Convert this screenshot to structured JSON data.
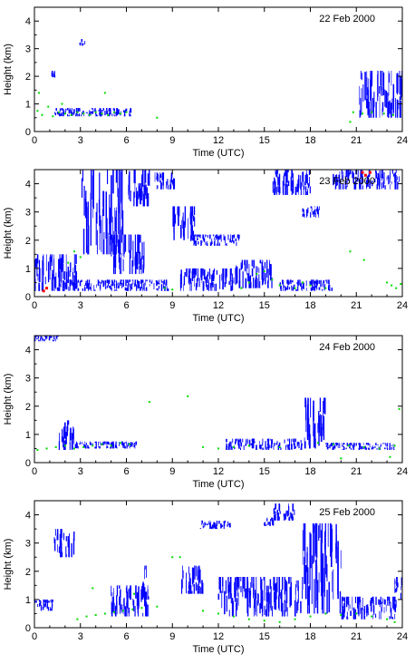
{
  "colors": {
    "cloud_base": "#0000ff",
    "aerosol_layer": "#00dd00",
    "precipitation": "#ff0000",
    "axis": "#000000"
  },
  "chart_data": [
    {
      "type": "scatter",
      "title": "22 Feb 2000",
      "xlabel": "Time (UTC)",
      "ylabel": "Height (km)",
      "xlim": [
        0,
        24
      ],
      "ylim": [
        0,
        4.5
      ],
      "xticks": [
        "0",
        "3",
        "6",
        "9",
        "12",
        "15",
        "18",
        "21",
        "24"
      ],
      "yticks": [
        "0",
        "1",
        "2",
        "3",
        "4"
      ],
      "cloud_segments": [
        {
          "t0": 1.1,
          "t1": 1.4,
          "h0": 1.95,
          "h1": 2.2
        },
        {
          "t0": 2.9,
          "t1": 3.3,
          "h0": 3.1,
          "h1": 3.35
        },
        {
          "t0": 1.3,
          "t1": 6.4,
          "h0": 0.55,
          "h1": 0.85
        },
        {
          "t0": 21.2,
          "t1": 24.0,
          "h0": 0.5,
          "h1": 2.2
        }
      ],
      "aerosol_points": [
        [
          0.2,
          0.75
        ],
        [
          0.5,
          0.6
        ],
        [
          0.9,
          0.9
        ],
        [
          1.2,
          0.55
        ],
        [
          1.6,
          0.7
        ],
        [
          2.0,
          0.65
        ],
        [
          2.4,
          0.6
        ],
        [
          2.8,
          0.7
        ],
        [
          3.2,
          0.65
        ],
        [
          3.6,
          0.6
        ],
        [
          4.0,
          0.7
        ],
        [
          4.4,
          0.65
        ],
        [
          4.8,
          0.6
        ],
        [
          5.2,
          0.7
        ],
        [
          5.6,
          0.65
        ],
        [
          6.0,
          0.7
        ],
        [
          0.3,
          1.4
        ],
        [
          1.8,
          1.0
        ],
        [
          4.6,
          1.4
        ],
        [
          8.0,
          0.5
        ],
        [
          20.6,
          0.35
        ],
        [
          20.8,
          0.7
        ],
        [
          21.4,
          0.65
        ],
        [
          22.0,
          0.7
        ],
        [
          22.8,
          0.65
        ],
        [
          23.4,
          0.6
        ]
      ],
      "precip_points": []
    },
    {
      "type": "scatter",
      "title": "23 Feb 2000",
      "xlabel": "Time (UTC)",
      "ylabel": "Height (km)",
      "xlim": [
        0,
        24
      ],
      "ylim": [
        0,
        4.5
      ],
      "xticks": [
        "0",
        "3",
        "6",
        "9",
        "12",
        "15",
        "18",
        "21",
        "24"
      ],
      "yticks": [
        "0",
        "1",
        "2",
        "3",
        "4"
      ],
      "cloud_segments": [
        {
          "t0": 0.0,
          "t1": 2.8,
          "h0": 0.2,
          "h1": 1.5
        },
        {
          "t0": 3.0,
          "t1": 5.8,
          "h0": 1.5,
          "h1": 4.5
        },
        {
          "t0": 6.0,
          "t1": 7.5,
          "h0": 3.2,
          "h1": 4.5
        },
        {
          "t0": 7.8,
          "t1": 9.2,
          "h0": 3.8,
          "h1": 4.4
        },
        {
          "t0": 1.5,
          "t1": 8.8,
          "h0": 0.2,
          "h1": 0.6
        },
        {
          "t0": 5.0,
          "t1": 7.2,
          "h0": 0.8,
          "h1": 2.2
        },
        {
          "t0": 9.0,
          "t1": 10.5,
          "h0": 2.0,
          "h1": 3.2
        },
        {
          "t0": 9.5,
          "t1": 13.0,
          "h0": 0.2,
          "h1": 1.0
        },
        {
          "t0": 10.2,
          "t1": 13.5,
          "h0": 1.8,
          "h1": 2.2
        },
        {
          "t0": 13.0,
          "t1": 15.5,
          "h0": 0.3,
          "h1": 1.3
        },
        {
          "t0": 15.5,
          "t1": 18.0,
          "h0": 3.6,
          "h1": 4.5
        },
        {
          "t0": 16.0,
          "t1": 19.5,
          "h0": 0.2,
          "h1": 0.6
        },
        {
          "t0": 17.5,
          "t1": 18.6,
          "h0": 2.8,
          "h1": 3.2
        },
        {
          "t0": 19.5,
          "t1": 23.8,
          "h0": 3.8,
          "h1": 4.5
        }
      ],
      "aerosol_points": [
        [
          2.2,
          1.2
        ],
        [
          2.6,
          1.6
        ],
        [
          3.0,
          1.4
        ],
        [
          8.5,
          0.3
        ],
        [
          9.0,
          0.25
        ],
        [
          13.5,
          0.3
        ],
        [
          14.0,
          0.5
        ],
        [
          14.5,
          0.8
        ],
        [
          15.0,
          0.9
        ],
        [
          15.5,
          0.6
        ],
        [
          16.0,
          0.4
        ],
        [
          17.0,
          0.3
        ],
        [
          17.5,
          0.5
        ],
        [
          18.0,
          0.4
        ],
        [
          19.0,
          0.3
        ],
        [
          20.6,
          1.6
        ],
        [
          21.5,
          1.3
        ],
        [
          23.0,
          0.5
        ],
        [
          23.3,
          0.4
        ],
        [
          23.6,
          0.3
        ],
        [
          23.9,
          0.45
        ]
      ],
      "precip_points": [
        [
          0.6,
          0.2
        ],
        [
          0.8,
          0.3
        ],
        [
          21.4,
          4.4
        ],
        [
          21.6,
          4.3
        ],
        [
          21.9,
          4.4
        ]
      ]
    },
    {
      "type": "scatter",
      "title": "24 Feb 2000",
      "xlabel": "Time (UTC)",
      "ylabel": "Height (km)",
      "xlim": [
        0,
        24
      ],
      "ylim": [
        0,
        4.5
      ],
      "xticks": [
        "0",
        "3",
        "6",
        "9",
        "12",
        "15",
        "18",
        "21",
        "24"
      ],
      "yticks": [
        "0",
        "1",
        "2",
        "3",
        "4"
      ],
      "cloud_segments": [
        {
          "t0": 0.0,
          "t1": 1.6,
          "h0": 4.3,
          "h1": 4.5
        },
        {
          "t0": 1.6,
          "t1": 2.6,
          "h0": 0.45,
          "h1": 1.5
        },
        {
          "t0": 2.6,
          "t1": 6.8,
          "h0": 0.5,
          "h1": 0.75
        },
        {
          "t0": 12.5,
          "t1": 17.5,
          "h0": 0.45,
          "h1": 0.85
        },
        {
          "t0": 17.5,
          "t1": 19.0,
          "h0": 0.5,
          "h1": 2.3
        },
        {
          "t0": 19.0,
          "t1": 23.5,
          "h0": 0.45,
          "h1": 0.7
        }
      ],
      "aerosol_points": [
        [
          0.2,
          0.45
        ],
        [
          0.8,
          0.5
        ],
        [
          1.4,
          0.55
        ],
        [
          2.0,
          0.6
        ],
        [
          2.6,
          0.5
        ],
        [
          3.2,
          0.55
        ],
        [
          3.8,
          0.6
        ],
        [
          4.4,
          0.65
        ],
        [
          5.0,
          0.6
        ],
        [
          5.6,
          0.7
        ],
        [
          6.2,
          0.65
        ],
        [
          7.5,
          2.15
        ],
        [
          10.0,
          2.35
        ],
        [
          11.0,
          0.55
        ],
        [
          12.0,
          0.5
        ],
        [
          13.0,
          0.55
        ],
        [
          14.0,
          0.6
        ],
        [
          16.0,
          0.55
        ],
        [
          18.5,
          0.7
        ],
        [
          19.5,
          0.65
        ],
        [
          20.5,
          0.6
        ],
        [
          21.5,
          0.55
        ],
        [
          22.5,
          0.5
        ],
        [
          23.5,
          0.6
        ],
        [
          23.8,
          1.9
        ],
        [
          23.2,
          0.2
        ],
        [
          20.0,
          0.15
        ]
      ],
      "precip_points": []
    },
    {
      "type": "scatter",
      "title": "25 Feb 2000",
      "xlabel": "Time (UTC)",
      "ylabel": "Height (km)",
      "xlim": [
        0,
        24
      ],
      "ylim": [
        0,
        4.5
      ],
      "xticks": [
        "0",
        "3",
        "6",
        "9",
        "12",
        "15",
        "18",
        "21",
        "24"
      ],
      "yticks": [
        "0",
        "1",
        "2",
        "3",
        "4"
      ],
      "cloud_segments": [
        {
          "t0": 0.0,
          "t1": 1.3,
          "h0": 0.6,
          "h1": 1.0
        },
        {
          "t0": 1.3,
          "t1": 2.6,
          "h0": 2.5,
          "h1": 3.5
        },
        {
          "t0": 5.0,
          "t1": 7.5,
          "h0": 0.4,
          "h1": 1.5
        },
        {
          "t0": 7.0,
          "t1": 7.5,
          "h0": 1.0,
          "h1": 2.2
        },
        {
          "t0": 9.5,
          "t1": 11.0,
          "h0": 1.2,
          "h1": 2.2
        },
        {
          "t0": 10.8,
          "t1": 12.8,
          "h0": 3.5,
          "h1": 3.8
        },
        {
          "t0": 12.0,
          "t1": 17.5,
          "h0": 0.4,
          "h1": 1.8
        },
        {
          "t0": 14.8,
          "t1": 15.6,
          "h0": 3.6,
          "h1": 3.9
        },
        {
          "t0": 15.6,
          "t1": 17.0,
          "h0": 3.8,
          "h1": 4.4
        },
        {
          "t0": 17.5,
          "t1": 20.0,
          "h0": 0.5,
          "h1": 3.7
        },
        {
          "t0": 20.0,
          "t1": 23.6,
          "h0": 0.3,
          "h1": 1.1
        },
        {
          "t0": 23.5,
          "t1": 24.0,
          "h0": 1.0,
          "h1": 1.8
        }
      ],
      "aerosol_points": [
        [
          2.8,
          0.3
        ],
        [
          3.4,
          0.4
        ],
        [
          4.0,
          0.45
        ],
        [
          4.6,
          0.5
        ],
        [
          5.2,
          0.55
        ],
        [
          5.8,
          0.6
        ],
        [
          6.4,
          0.65
        ],
        [
          7.0,
          0.7
        ],
        [
          8.0,
          0.75
        ],
        [
          9.0,
          2.5
        ],
        [
          9.5,
          2.5
        ],
        [
          11.0,
          0.6
        ],
        [
          12.0,
          0.5
        ],
        [
          13.0,
          0.4
        ],
        [
          14.0,
          0.3
        ],
        [
          15.0,
          0.25
        ],
        [
          16.0,
          0.2
        ],
        [
          17.0,
          0.3
        ],
        [
          18.0,
          0.4
        ],
        [
          19.0,
          0.5
        ],
        [
          20.0,
          0.45
        ],
        [
          21.0,
          0.5
        ],
        [
          22.0,
          0.4
        ],
        [
          23.0,
          0.3
        ],
        [
          23.5,
          0.2
        ],
        [
          6.5,
          1.2
        ],
        [
          3.8,
          1.4
        ]
      ],
      "precip_points": []
    }
  ]
}
